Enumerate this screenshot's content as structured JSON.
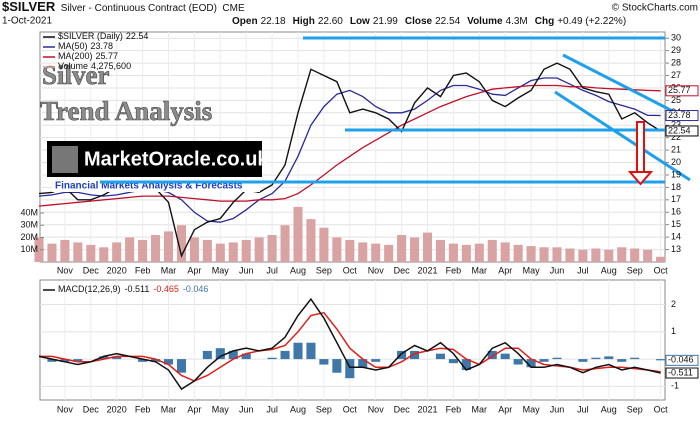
{
  "chart_data": {
    "type": "stock",
    "title": "$SILVER",
    "subtitle": "Silver - Continuous Contract (EOD)",
    "exchange": "CME",
    "date": "1-Oct-2021",
    "credit": "© StockCharts.com",
    "quote": [
      "Open",
      "22.18",
      "High",
      "22.60",
      "Low",
      "21.99",
      "Close",
      "22.54",
      "Volume",
      "4.3M",
      "Chg",
      "+0.49 (+2.22%)"
    ],
    "categories": [
      null,
      null,
      "Nov",
      null,
      "Dec",
      null,
      "2020",
      null,
      "Feb",
      null,
      "Mar",
      null,
      "Apr",
      null,
      "May",
      null,
      "Jun",
      null,
      "Jul",
      null,
      "Aug",
      null,
      "Sep",
      null,
      "Oct",
      null,
      "Nov",
      null,
      "Dec",
      null,
      "2021",
      null,
      "Feb",
      null,
      "Mar",
      null,
      "Apr",
      null,
      "May",
      null,
      "Jun",
      null,
      "Jul",
      null,
      "Aug",
      null,
      "Sep",
      null,
      "Oct"
    ],
    "ylim": [
      12,
      30.5
    ],
    "yticks": [
      13,
      14,
      15,
      16,
      17,
      18,
      19,
      20,
      21,
      22,
      23,
      24,
      25,
      26,
      27,
      28,
      29,
      30
    ],
    "grid": true,
    "price": {
      "name": "$SILVER (Daily)",
      "color": "#111111",
      "values": [
        17.5,
        17.6,
        18.0,
        17.0,
        17.0,
        17.4,
        18.0,
        18.1,
        17.8,
        17.9,
        16.8,
        12.5,
        14.6,
        15.2,
        15.5,
        16.8,
        17.8,
        17.6,
        18.2,
        19.8,
        24.0,
        27.5,
        27.0,
        26.5,
        24.0,
        24.3,
        24.0,
        23.5,
        22.5,
        24.8,
        26.0,
        25.3,
        27.0,
        27.2,
        26.5,
        25.0,
        24.5,
        25.2,
        25.8,
        27.5,
        28.0,
        27.5,
        26.0,
        25.7,
        25.5,
        23.5,
        24.0,
        23.2,
        22.54
      ]
    },
    "series": [
      {
        "name": "MA(50)",
        "color": "#2a2a9a",
        "values": [
          17.3,
          17.4,
          17.6,
          17.6,
          17.4,
          17.3,
          17.4,
          17.6,
          17.8,
          17.8,
          17.6,
          17.0,
          16.0,
          15.3,
          15.2,
          15.5,
          16.2,
          17.0,
          17.5,
          18.5,
          20.5,
          23,
          24.5,
          25.5,
          25.8,
          25.3,
          24.5,
          24.0,
          24.0,
          24.3,
          25.0,
          25.8,
          26.2,
          26.2,
          25.9,
          25.5,
          25.4,
          26.0,
          26.6,
          26.8,
          26.8,
          26.3,
          25.8,
          25.4,
          24.9,
          24.6,
          24.3,
          23.8,
          23.78
        ]
      },
      {
        "name": "MA(200)",
        "color": "#c0102a",
        "values": [
          16.5,
          16.6,
          16.7,
          16.8,
          16.9,
          17.0,
          17.1,
          17.2,
          17.3,
          17.3,
          17.3,
          17.2,
          17.1,
          17.0,
          16.9,
          16.9,
          16.9,
          17.0,
          17.0,
          17.1,
          17.5,
          18.2,
          19.0,
          19.8,
          20.5,
          21.2,
          21.8,
          22.4,
          23.0,
          23.5,
          24.0,
          24.5,
          24.9,
          25.3,
          25.6,
          25.9,
          26.0,
          26.1,
          26.2,
          26.2,
          26.2,
          26.1,
          26.1,
          26.0,
          25.95,
          25.9,
          25.85,
          25.8,
          25.77
        ]
      }
    ],
    "volume": {
      "name": "Volume",
      "color": "#d9a3a3",
      "values": [
        20,
        15,
        18,
        16,
        14,
        12,
        16,
        20,
        18,
        22,
        25,
        30,
        20,
        18,
        15,
        16,
        18,
        20,
        22,
        30,
        45,
        35,
        28,
        20,
        18,
        16,
        15,
        14,
        22,
        20,
        24,
        18,
        15,
        14,
        15,
        18,
        16,
        14,
        13,
        12,
        12,
        11,
        10,
        11,
        10,
        12,
        11,
        10,
        4.2756
      ],
      "value_labels": {
        "48": "4,275,600"
      },
      "ylim": [
        0,
        60
      ],
      "yticks": [
        {
          "value": 10,
          "label": "10M"
        },
        {
          "value": 20,
          "label": "20M"
        },
        {
          "value": 30,
          "label": "30M"
        },
        {
          "value": 40,
          "label": "40M"
        }
      ]
    },
    "macd": {
      "name": "MACD(12,26,9)",
      "ylim": [
        -1.5,
        2.9
      ],
      "yticks": [
        -1,
        0,
        1,
        2
      ],
      "series": [
        {
          "name": "MACD",
          "color": "#111111",
          "values": [
            0.1,
            0.0,
            -0.1,
            -0.2,
            -0.1,
            0.1,
            0.2,
            0.1,
            0.0,
            -0.1,
            -0.4,
            -1.1,
            -0.8,
            -0.3,
            0.1,
            0.3,
            0.4,
            0.3,
            0.4,
            0.8,
            1.6,
            2.2,
            1.5,
            0.6,
            -0.3,
            -0.3,
            -0.4,
            -0.3,
            0.2,
            0.5,
            0.3,
            0.6,
            0.2,
            -0.4,
            -0.2,
            0.4,
            0.6,
            0.2,
            -0.3,
            -0.3,
            -0.2,
            -0.3,
            -0.5,
            -0.3,
            -0.2,
            -0.4,
            -0.3,
            -0.4,
            -0.511
          ]
        },
        {
          "name": "Signal",
          "color": "#e0201a",
          "values": [
            0.1,
            0.1,
            0.0,
            -0.1,
            -0.1,
            0.0,
            0.1,
            0.1,
            0.1,
            0.0,
            -0.2,
            -0.6,
            -0.8,
            -0.6,
            -0.3,
            0.0,
            0.2,
            0.3,
            0.35,
            0.5,
            1.0,
            1.6,
            1.7,
            1.1,
            0.4,
            0.0,
            -0.3,
            -0.3,
            -0.1,
            0.2,
            0.3,
            0.4,
            0.35,
            0.0,
            -0.2,
            0.1,
            0.4,
            0.4,
            0.0,
            -0.2,
            -0.25,
            -0.3,
            -0.4,
            -0.35,
            -0.3,
            -0.3,
            -0.35,
            -0.4,
            -0.465
          ]
        },
        {
          "name": "Histogram",
          "color": "#3f78a8",
          "values": [
            0.0,
            -0.1,
            -0.1,
            -0.1,
            0.0,
            0.1,
            0.1,
            0.0,
            -0.1,
            -0.1,
            -0.2,
            -0.5,
            0.0,
            0.3,
            0.4,
            0.3,
            0.2,
            0.0,
            0.05,
            0.3,
            0.6,
            0.6,
            -0.2,
            -0.5,
            -0.7,
            -0.3,
            -0.1,
            0.0,
            0.3,
            0.3,
            0.0,
            0.2,
            -0.15,
            -0.4,
            0.0,
            0.3,
            0.2,
            -0.2,
            -0.3,
            -0.1,
            0.05,
            0.0,
            -0.1,
            0.05,
            0.1,
            -0.1,
            0.05,
            0.0,
            -0.046
          ]
        }
      ]
    },
    "overlay": {
      "line1": "Silver",
      "line2": "Trend Analysis",
      "logo": "MarketOracle.co.uk",
      "tagline": "Financial Markets Analysis & Forecasts"
    }
  }
}
